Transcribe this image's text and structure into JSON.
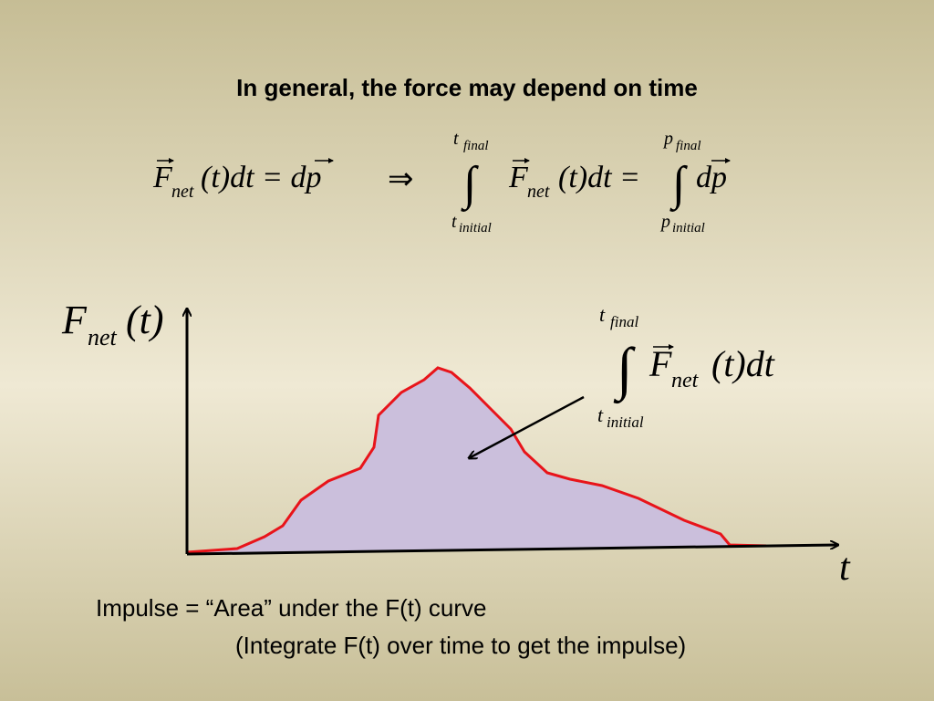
{
  "title": "In general, the force may depend on time",
  "equation": {
    "left": {
      "symbol": "F",
      "subscript": "net",
      "rest": "(t)dt = dp"
    },
    "implies": "⇒",
    "middle": {
      "integral_sign": "∫",
      "upper": "t",
      "upper_sub": "final",
      "lower": "t",
      "lower_sub": "initial",
      "symbol": "F",
      "subscript": "net",
      "rest": "(t)dt ="
    },
    "right": {
      "integral_sign": "∫",
      "upper": "p",
      "upper_sub": "final",
      "lower": "p",
      "lower_sub": "initial",
      "rest": "dp"
    }
  },
  "graph": {
    "y_label": {
      "symbol": "F",
      "subscript": "net",
      "rest": "(t)"
    },
    "x_label": "t",
    "annotation": {
      "integral_sign": "∫",
      "upper": "t",
      "upper_sub": "final",
      "lower": "t",
      "lower_sub": "initial",
      "symbol": "F",
      "subscript": "net",
      "rest": "(t)dt"
    }
  },
  "caption": {
    "line1": "Impulse = “Area” under the F(t) curve",
    "line2": "(Integrate F(t) over time to get the impulse)"
  }
}
